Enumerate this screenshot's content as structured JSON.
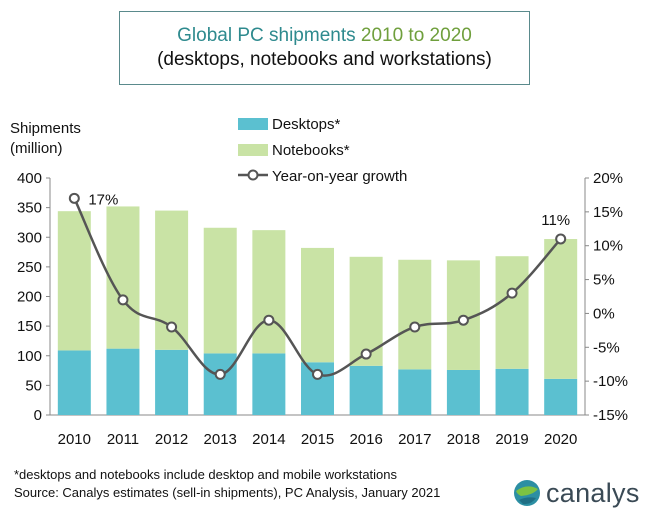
{
  "title": {
    "part1": "Global PC shipments",
    "part2": "2010 to 2020",
    "line2": "(desktops, notebooks and workstations)"
  },
  "colors": {
    "desktops": "#5bc0d0",
    "notebooks": "#c9e3a5",
    "line": "#555555",
    "frame": "#5a8a8c"
  },
  "chart_data": {
    "type": "bar",
    "stacked": true,
    "categories": [
      "2010",
      "2011",
      "2012",
      "2013",
      "2014",
      "2015",
      "2016",
      "2017",
      "2018",
      "2019",
      "2020"
    ],
    "series": [
      {
        "name": "Desktops*",
        "axis": "left",
        "values": [
          109,
          112,
          110,
          104,
          104,
          89,
          83,
          77,
          76,
          78,
          61
        ]
      },
      {
        "name": "Notebooks*",
        "axis": "left",
        "values": [
          235,
          240,
          235,
          212,
          208,
          193,
          184,
          185,
          185,
          190,
          236
        ]
      },
      {
        "name": "Year-on-year growth",
        "type": "line",
        "axis": "right",
        "unit": "%",
        "values": [
          17,
          2,
          -2,
          -9,
          -1,
          -9,
          -6,
          -2,
          -1,
          3,
          11
        ]
      }
    ],
    "data_labels": [
      {
        "index": 0,
        "text": "17%"
      },
      {
        "index": 10,
        "text": "11%"
      }
    ],
    "ylabel_left": [
      "Shipments",
      "(million)"
    ],
    "ylim_left": [
      0,
      400
    ],
    "yticks_left": [
      "0",
      "50",
      "100",
      "150",
      "200",
      "250",
      "300",
      "350",
      "400"
    ],
    "ylim_right": [
      -15,
      20
    ],
    "yticks_right": [
      "-15%",
      "-10%",
      "-5%",
      "0%",
      "5%",
      "10%",
      "15%",
      "20%"
    ],
    "legend_position": "top-center",
    "grid": false
  },
  "footnote": {
    "line1": "*desktops and notebooks include desktop and mobile workstations",
    "line2": "Source: Canalys estimates (sell-in shipments), PC Analysis, January 2021"
  },
  "logo": {
    "word": "canalys",
    "icon": "globe-icon"
  }
}
